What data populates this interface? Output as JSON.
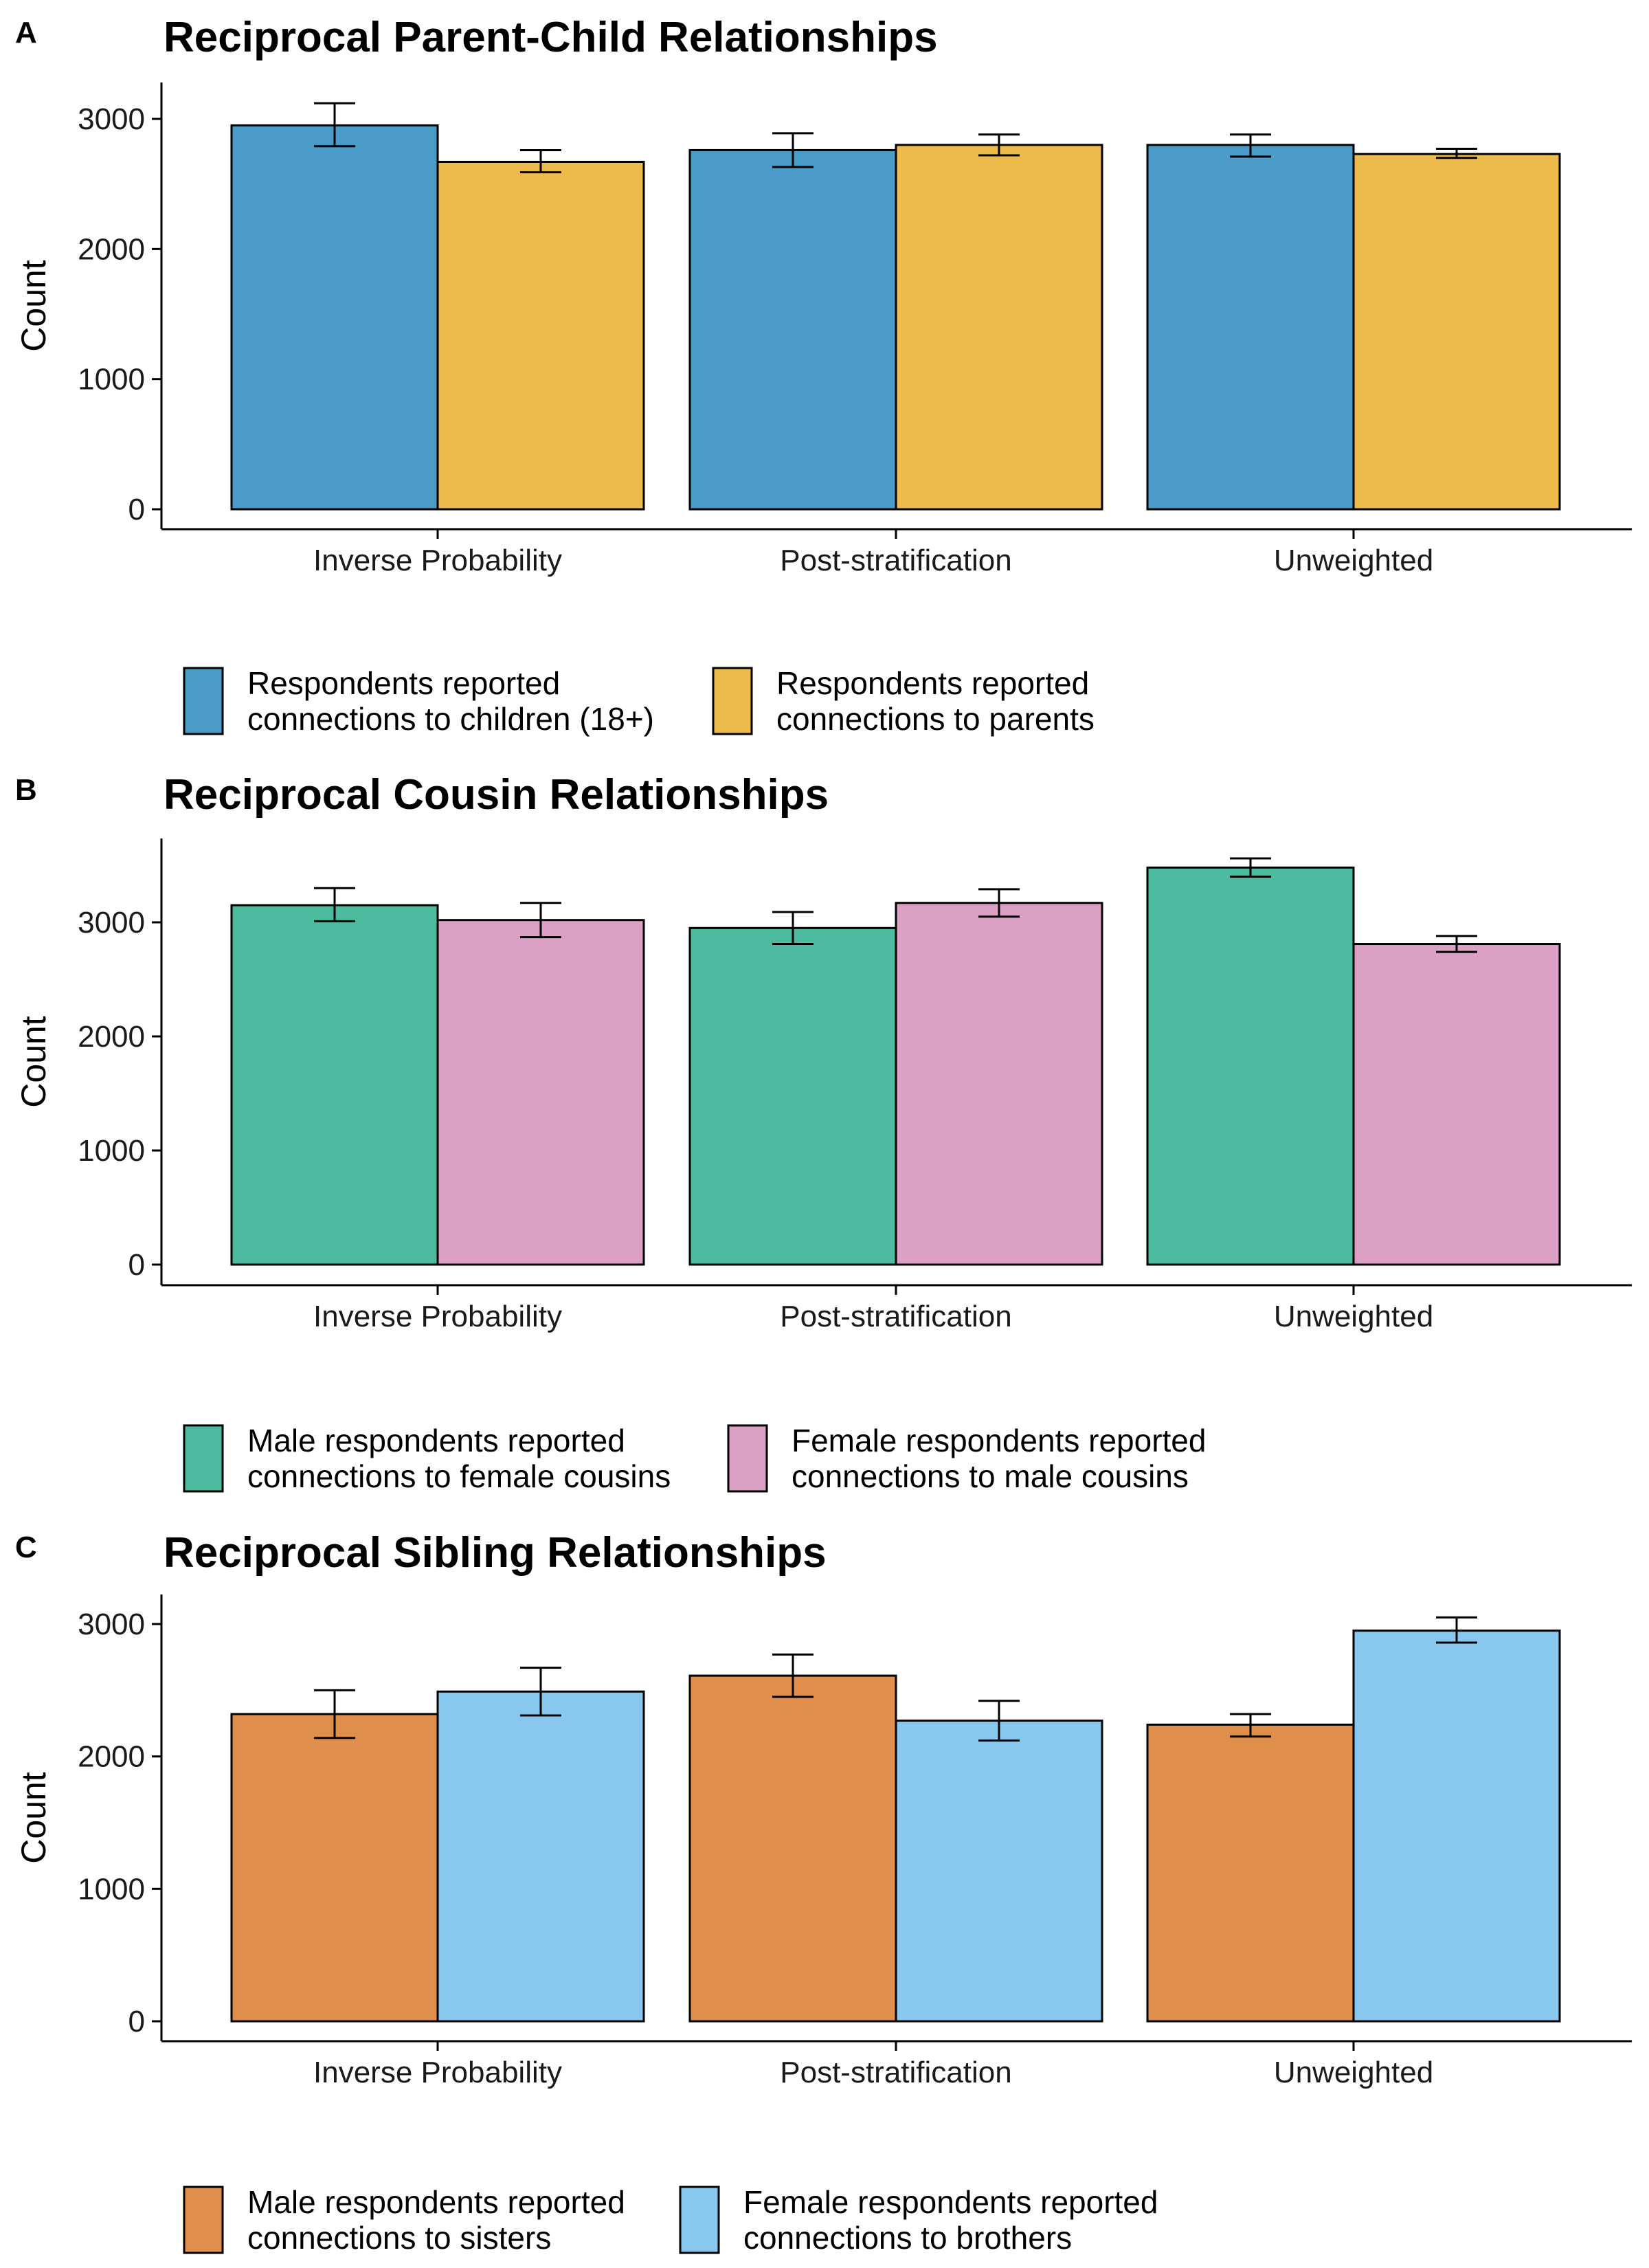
{
  "chart_data": [
    {
      "panel": "A",
      "type": "bar",
      "title": "Reciprocal Parent-Child Relationships",
      "xlabel": "",
      "ylabel": "Count",
      "ylim": [
        0,
        3200
      ],
      "yticks": [
        0,
        1000,
        2000,
        3000
      ],
      "grid": false,
      "legend_position": "bottom",
      "categories": [
        "Inverse Probability",
        "Post-stratification",
        "Unweighted"
      ],
      "series": [
        {
          "name": "Respondents reported connections to children (18+)",
          "legend_lines": [
            "Respondents reported",
            "connections to children (18+)"
          ],
          "color": "#4a9bc7",
          "values": [
            2950,
            2760,
            2800
          ],
          "error_low": [
            2790,
            2630,
            2710
          ],
          "error_high": [
            3120,
            2890,
            2880
          ]
        },
        {
          "name": "Respondents reported connections to parents",
          "legend_lines": [
            "Respondents reported",
            "connections to parents"
          ],
          "color": "#edbb4c",
          "values": [
            2670,
            2800,
            2730
          ],
          "error_low": [
            2590,
            2720,
            2700
          ],
          "error_high": [
            2760,
            2880,
            2770
          ]
        }
      ]
    },
    {
      "panel": "B",
      "type": "bar",
      "title": "Reciprocal Cousin Relationships",
      "xlabel": "",
      "ylabel": "Count",
      "ylim": [
        0,
        3800
      ],
      "yticks": [
        0,
        1000,
        2000,
        3000
      ],
      "grid": false,
      "legend_position": "bottom",
      "categories": [
        "Inverse Probability",
        "Post-stratification",
        "Unweighted"
      ],
      "series": [
        {
          "name": "Male respondents reported connections to female cousins",
          "legend_lines": [
            "Male respondents reported",
            "connections to female cousins"
          ],
          "color": "#4cbb9f",
          "values": [
            3150,
            2950,
            3480
          ],
          "error_low": [
            3010,
            2810,
            3400
          ],
          "error_high": [
            3300,
            3090,
            3560
          ]
        },
        {
          "name": "Female respondents reported connections to male cousins",
          "legend_lines": [
            "Female respondents reported",
            "connections to male cousins"
          ],
          "color": "#dba0c3",
          "values": [
            3020,
            3170,
            2810
          ],
          "error_low": [
            2870,
            3050,
            2740
          ],
          "error_high": [
            3170,
            3290,
            2880
          ]
        }
      ]
    },
    {
      "panel": "C",
      "type": "bar",
      "title": "Reciprocal Sibling Relationships",
      "xlabel": "",
      "ylabel": "Count",
      "ylim": [
        0,
        3250
      ],
      "yticks": [
        0,
        1000,
        2000,
        3000
      ],
      "grid": false,
      "legend_position": "bottom",
      "categories": [
        "Inverse Probability",
        "Post-stratification",
        "Unweighted"
      ],
      "series": [
        {
          "name": "Male respondents reported connections to sisters",
          "legend_lines": [
            "Male respondents reported",
            "connections to sisters"
          ],
          "color": "#e08e4c",
          "values": [
            2320,
            2610,
            2240
          ],
          "error_low": [
            2140,
            2450,
            2150
          ],
          "error_high": [
            2500,
            2770,
            2320
          ]
        },
        {
          "name": "Female respondents reported connections to brothers",
          "legend_lines": [
            "Female respondents reported",
            "connections to brothers"
          ],
          "color": "#88c8ee",
          "values": [
            2490,
            2270,
            2950
          ],
          "error_low": [
            2310,
            2120,
            2860
          ],
          "error_high": [
            2670,
            2420,
            3050
          ]
        }
      ]
    }
  ]
}
